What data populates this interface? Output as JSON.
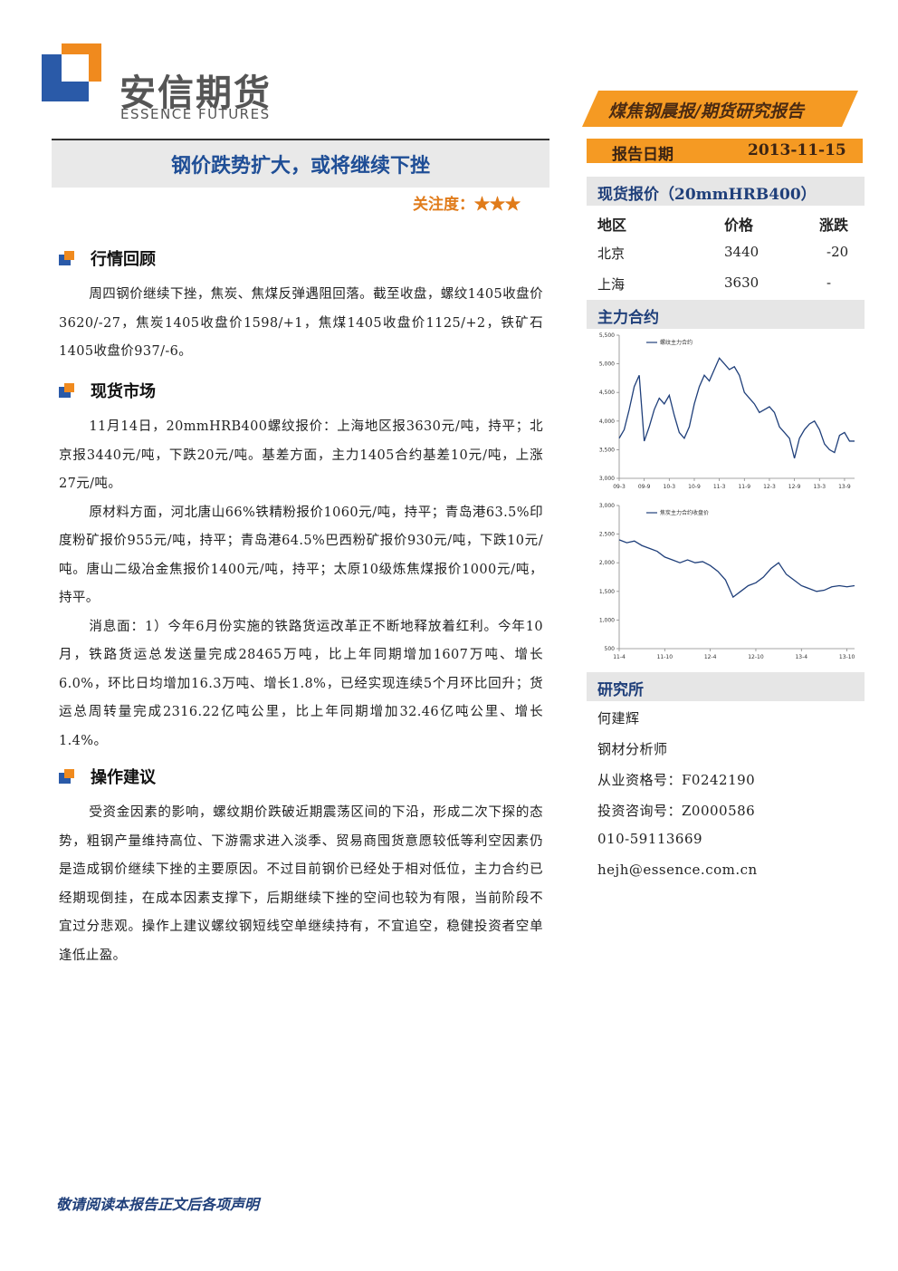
{
  "header": {
    "logo_cn": "安信期货",
    "logo_en": "ESSENCE FUTURES",
    "banner": "煤焦钢晨报/期货研究报告",
    "report_date_label": "报告日期",
    "report_date": "2013-11-15"
  },
  "title": "钢价跌势扩大，或将继续下挫",
  "attention_label": "关注度：",
  "attention_stars": "★★★",
  "sections": [
    {
      "heading": "行情回顾",
      "paragraphs": [
        "周四钢价继续下挫，焦炭、焦煤反弹遇阻回落。截至收盘，螺纹1405收盘价3620/-27，焦炭1405收盘价1598/+1，焦煤1405收盘价1125/+2，铁矿石1405收盘价937/-6。"
      ]
    },
    {
      "heading": "现货市场",
      "paragraphs": [
        "11月14日，20mmHRB400螺纹报价：上海地区报3630元/吨，持平；北京报3440元/吨，下跌20元/吨。基差方面，主力1405合约基差10元/吨，上涨27元/吨。",
        "原材料方面，河北唐山66%铁精粉报价1060元/吨，持平；青岛港63.5%印度粉矿报价955元/吨，持平；青岛港64.5%巴西粉矿报价930元/吨，下跌10元/吨。唐山二级冶金焦报价1400元/吨，持平；太原10级炼焦煤报价1000元/吨，持平。",
        "消息面：1）今年6月份实施的铁路货运改革正不断地释放着红利。今年10月，铁路货运总发送量完成28465万吨，比上年同期增加1607万吨、增长6.0%，环比日均增加16.3万吨、增长1.8%，已经实现连续5个月环比回升；货运总周转量完成2316.22亿吨公里，比上年同期增加32.46亿吨公里、增长1.4%。"
      ]
    },
    {
      "heading": "操作建议",
      "paragraphs": [
        "受资金因素的影响，螺纹期价跌破近期震荡区间的下沿，形成二次下探的态势，粗钢产量维持高位、下游需求进入淡季、贸易商囤货意愿较低等利空因素仍是造成钢价继续下挫的主要原因。不过目前钢价已经处于相对低位，主力合约已经期现倒挂，在成本因素支撑下，后期继续下挫的空间也较为有限，当前阶段不宜过分悲观。操作上建议螺纹钢短线空单继续持有，不宜追空，稳健投资者空单逢低止盈。"
      ]
    }
  ],
  "spot_price": {
    "heading": "现货报价（20mmHRB400）",
    "columns": [
      "地区",
      "价格",
      "涨跌"
    ],
    "rows": [
      [
        "北京",
        "3440",
        "-20"
      ],
      [
        "上海",
        "3630",
        "-"
      ]
    ]
  },
  "main_contract_heading": "主力合约",
  "chart_data": [
    {
      "type": "line",
      "categories": [
        "09-3",
        null,
        null,
        null,
        null,
        "09-9",
        null,
        null,
        null,
        null,
        "10-3",
        null,
        null,
        null,
        null,
        "10-9",
        null,
        null,
        null,
        null,
        "11-3",
        null,
        null,
        null,
        null,
        "11-9",
        null,
        null,
        null,
        null,
        "12-3",
        null,
        null,
        null,
        null,
        "12-9",
        null,
        null,
        null,
        null,
        "13-3",
        null,
        null,
        null,
        null,
        "13-9",
        null,
        null
      ],
      "series": [
        {
          "name": "螺纹主力合约",
          "color": "#1f3f7a",
          "values": [
            3700,
            3850,
            4200,
            4600,
            4800,
            3650,
            3900,
            4200,
            4400,
            4300,
            4450,
            4100,
            3800,
            3700,
            3900,
            4300,
            4600,
            4800,
            4700,
            4900,
            5100,
            5000,
            4900,
            4950,
            4800,
            4500,
            4400,
            4300,
            4150,
            4200,
            4250,
            4150,
            3900,
            3800,
            3700,
            3350,
            3700,
            3850,
            3950,
            4000,
            3850,
            3600,
            3500,
            3450,
            3750,
            3800,
            3650,
            3650
          ]
        }
      ],
      "ylim": [
        3000,
        5500
      ],
      "yticks": [
        {
          "value": 3000,
          "label": "3,000"
        },
        {
          "value": 3500,
          "label": "3,500"
        },
        {
          "value": 4000,
          "label": "4,000"
        },
        {
          "value": 4500,
          "label": "4,500"
        },
        {
          "value": 5000,
          "label": "5,000"
        },
        {
          "value": 5500,
          "label": "5,500"
        }
      ]
    },
    {
      "type": "line",
      "categories": [
        "11-4",
        null,
        null,
        null,
        null,
        null,
        "11-10",
        null,
        null,
        null,
        null,
        null,
        "12-4",
        null,
        null,
        null,
        null,
        null,
        "12-10",
        null,
        null,
        null,
        null,
        null,
        "13-4",
        null,
        null,
        null,
        null,
        null,
        "13-10",
        null
      ],
      "series": [
        {
          "name": "焦炭主力合约收盘价",
          "color": "#1f3f7a",
          "values": [
            2400,
            2350,
            2380,
            2300,
            2250,
            2200,
            2100,
            2050,
            2000,
            2050,
            2000,
            2020,
            1950,
            1850,
            1700,
            1400,
            1500,
            1600,
            1650,
            1750,
            1900,
            2000,
            1800,
            1700,
            1600,
            1550,
            1500,
            1520,
            1580,
            1600,
            1580,
            1600
          ]
        }
      ],
      "ylim": [
        500,
        3000
      ],
      "yticks": [
        500,
        {
          "value": 1000,
          "label": "1,000"
        },
        {
          "value": 1500,
          "label": "1,500"
        },
        {
          "value": 2000,
          "label": "2,000"
        },
        {
          "value": 2500,
          "label": "2,500"
        },
        {
          "value": 3000,
          "label": "3,000"
        }
      ]
    }
  ],
  "research": {
    "heading": "研究所",
    "lines": [
      "何建辉",
      "钢材分析师",
      "从业资格号：F0242190",
      "投资咨询号：Z0000586",
      "010-59113669",
      "hejh@essence.com.cn"
    ]
  },
  "footer": "敬请阅读本报告正文后各项声明"
}
